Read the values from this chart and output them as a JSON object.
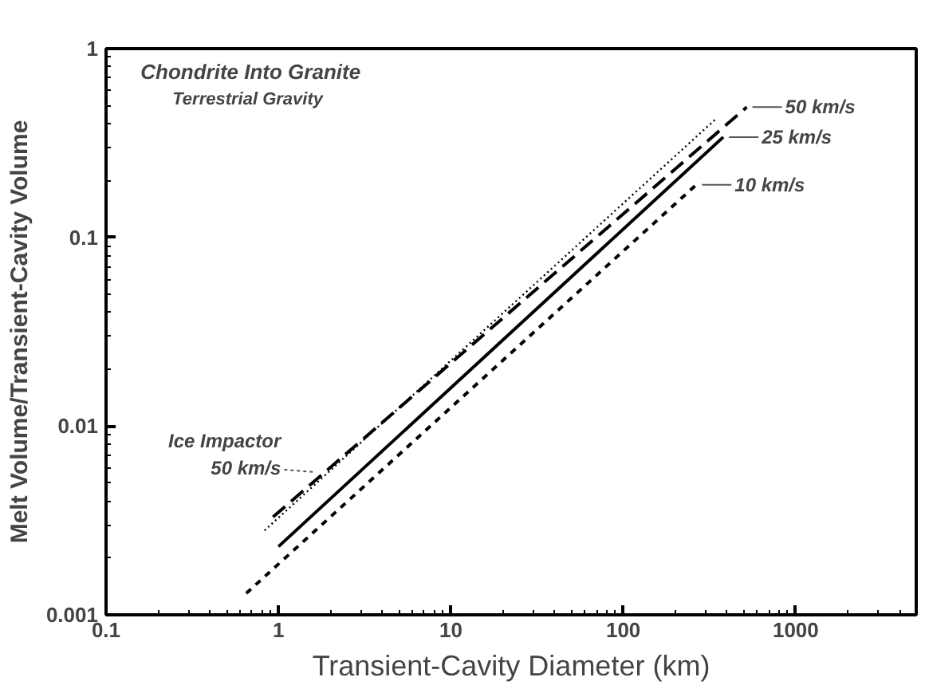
{
  "chart_data": {
    "type": "line",
    "title": "Chondrite Into Granite",
    "subtitle": "Terrestrial Gravity",
    "xlabel": "Transient-Cavity Diameter (km)",
    "ylabel": "Melt Volume/Transient-Cavity Volume",
    "log": "xy",
    "xlim": [
      0.1,
      5000
    ],
    "ylim": [
      0.001,
      1
    ],
    "xticks": [
      0.1,
      1,
      10,
      100,
      1000
    ],
    "yticks": [
      0.001,
      0.01,
      0.1,
      1
    ],
    "grid": false,
    "series": [
      {
        "name": "Ice Impactor 50 km/s",
        "color": "#000000",
        "line_style": "dotted",
        "x": [
          0.83,
          340
        ],
        "values": [
          0.0028,
          0.42
        ]
      },
      {
        "name": "50 km/s",
        "color": "#000000",
        "line_style": "dashed",
        "x": [
          0.93,
          520
        ],
        "values": [
          0.0033,
          0.49
        ]
      },
      {
        "name": "25 km/s",
        "color": "#000000",
        "line_style": "solid",
        "x": [
          1,
          380
        ],
        "values": [
          0.0023,
          0.34
        ]
      },
      {
        "name": "10 km/s",
        "color": "#000000",
        "line_style": "short-dashed",
        "x": [
          0.65,
          265
        ],
        "values": [
          0.0013,
          0.19
        ]
      }
    ]
  }
}
